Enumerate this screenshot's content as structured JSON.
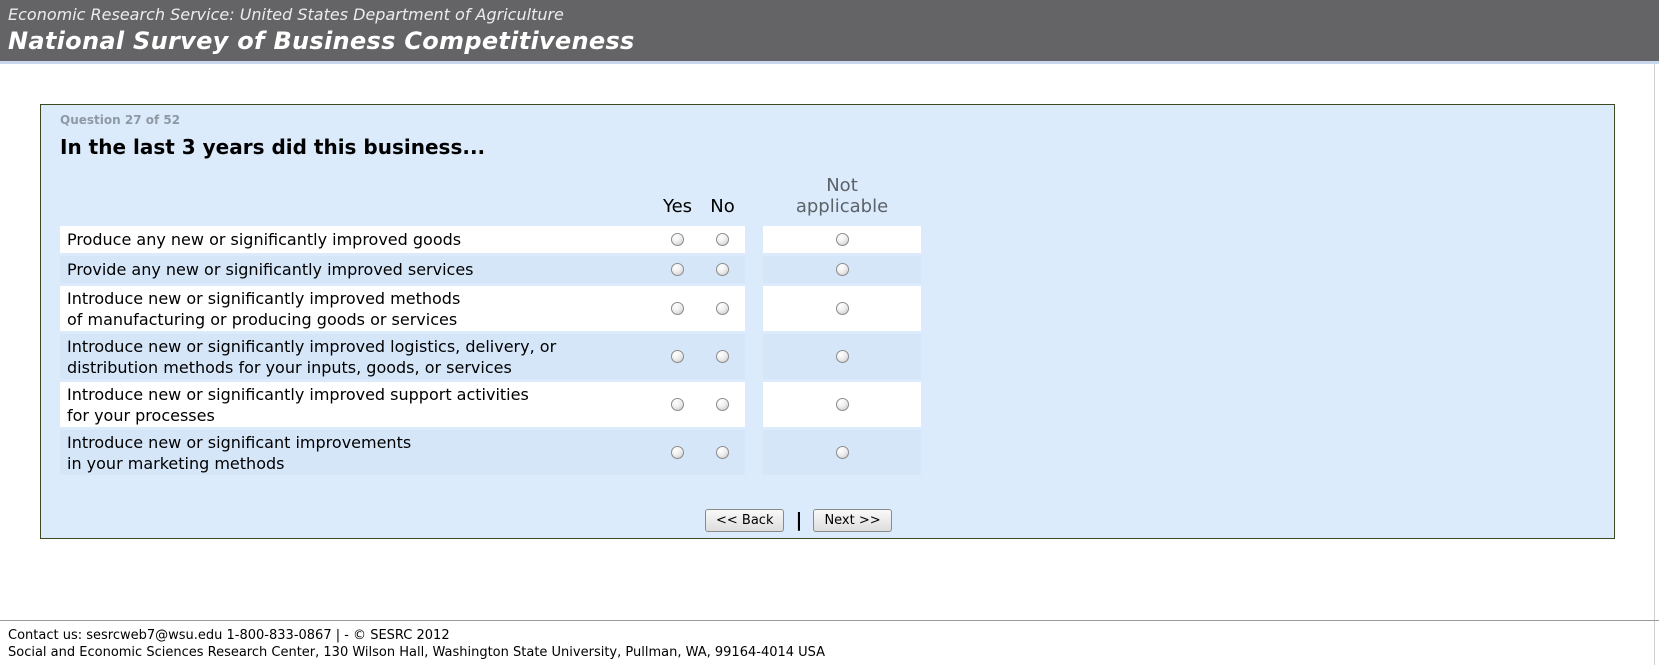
{
  "banner": {
    "agency": "Economic Research Service: United States Department of Agriculture",
    "survey_title": "National Survey of Business Competitiveness"
  },
  "question": {
    "progress": "Question 27 of 52",
    "title": "In the last 3 years did this business...",
    "columns": [
      "Yes",
      "No",
      "Not\napplicable"
    ],
    "rows": [
      {
        "text": "Produce any new or significantly improved goods"
      },
      {
        "text": "Provide any new or significantly improved services"
      },
      {
        "text": "Introduce new or significantly improved methods\nof manufacturing or producing goods or services"
      },
      {
        "text": "Introduce new or significantly improved logistics, delivery, or\ndistribution methods for your inputs, goods, or services"
      },
      {
        "text": "Introduce new or significantly improved support activities\nfor your processes"
      },
      {
        "text": "Introduce new or significant improvements\nin your marketing methods"
      }
    ],
    "radio_states": {
      "checked": false
    }
  },
  "nav": {
    "back_label": "<< Back",
    "separator": "|",
    "next_label": "Next >>"
  },
  "footer": {
    "line1": "Contact us: sesrcweb7@wsu.edu 1-800-833-0867 | - © SESRC 2012",
    "line2": "Social and Economic Sciences Research Center, 130 Wilson Hall, Washington State University, Pullman, WA, 99164-4014 USA"
  },
  "colors": {
    "header-bar-bg": "#646467",
    "header-underline": "#c9d7ec",
    "panel-bg": "#dcebfc",
    "panel-border": "#3c4a21",
    "row-stripe": "#d6e6f9",
    "muted-gray": "#8e99a4",
    "col-gray": "#5b6268"
  }
}
